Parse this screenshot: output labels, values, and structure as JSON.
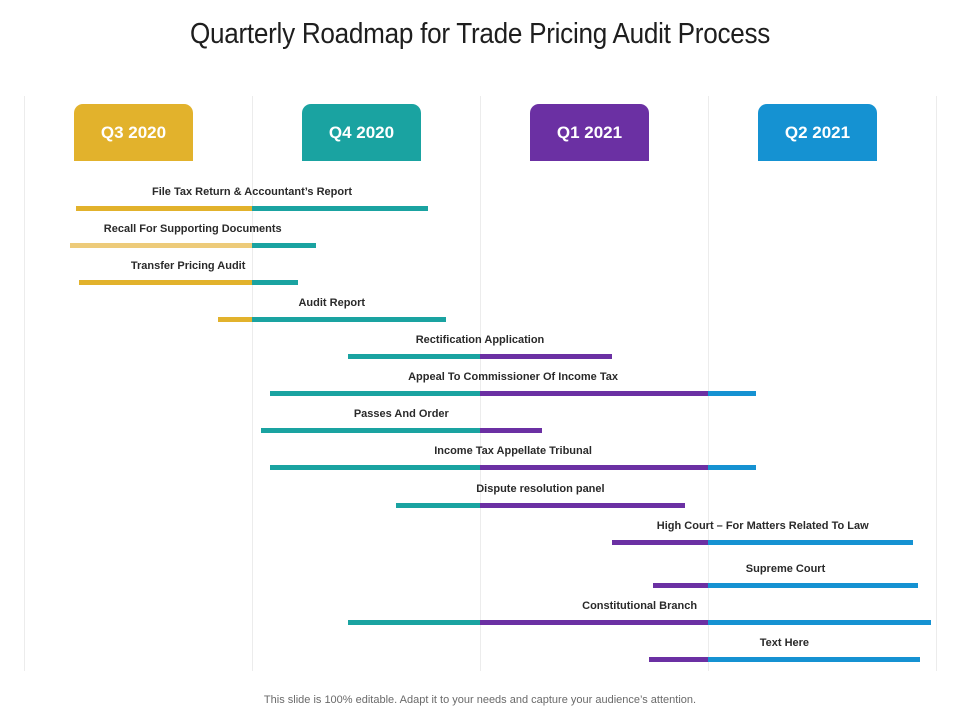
{
  "title": "Quarterly Roadmap for Trade Pricing Audit Process",
  "footer": "This slide is 100% editable. Adapt it to your needs and capture your audience’s attention.",
  "colors": {
    "q3": "#E2B22C",
    "q3_light": "#EDCB7A",
    "q4": "#1AA3A1",
    "q1": "#6B30A3",
    "q2": "#1592D2"
  },
  "quarters": [
    {
      "label": "Q3 2020",
      "color": "#E2B22C"
    },
    {
      "label": "Q4 2020",
      "color": "#1AA3A1"
    },
    {
      "label": "Q1 2021",
      "color": "#6B30A3"
    },
    {
      "label": "Q2 2021",
      "color": "#1592D2"
    }
  ],
  "chart_data": {
    "type": "gantt",
    "title": "Quarterly Roadmap for Trade Pricing Audit Process",
    "quarters": [
      "Q3 2020",
      "Q4 2020",
      "Q1 2021",
      "Q2 2021"
    ],
    "x_range": [
      0,
      4
    ],
    "tasks": [
      {
        "label": "File Tax Return & Accountant’s Report",
        "start": 0.23,
        "end": 1.77,
        "light": false
      },
      {
        "label": "Recall For Supporting Documents",
        "start": 0.2,
        "end": 1.28,
        "light": true
      },
      {
        "label": "Transfer Pricing Audit",
        "start": 0.24,
        "end": 1.2,
        "light": false
      },
      {
        "label": "Audit Report",
        "start": 0.85,
        "end": 1.85,
        "light": false
      },
      {
        "label": "Rectification Application",
        "start": 1.42,
        "end": 2.58,
        "light": false
      },
      {
        "label": "Appeal To Commissioner Of Income Tax",
        "start": 1.08,
        "end": 3.21,
        "light": false
      },
      {
        "label": "Passes And Order",
        "start": 1.04,
        "end": 2.27,
        "light": false
      },
      {
        "label": "Income Tax Appellate Tribunal",
        "start": 1.08,
        "end": 3.21,
        "light": false
      },
      {
        "label": "Dispute resolution panel",
        "start": 1.63,
        "end": 2.9,
        "light": false
      },
      {
        "label": "High Court – For Matters Related To Law",
        "start": 2.58,
        "end": 3.9,
        "light": false
      },
      {
        "label": "Supreme Court",
        "start": 2.76,
        "end": 3.92,
        "light": false
      },
      {
        "label": "Constitutional Branch",
        "start": 1.42,
        "end": 3.98,
        "light": false
      },
      {
        "label": "Text Here",
        "start": 2.74,
        "end": 3.93,
        "light": false
      }
    ]
  }
}
